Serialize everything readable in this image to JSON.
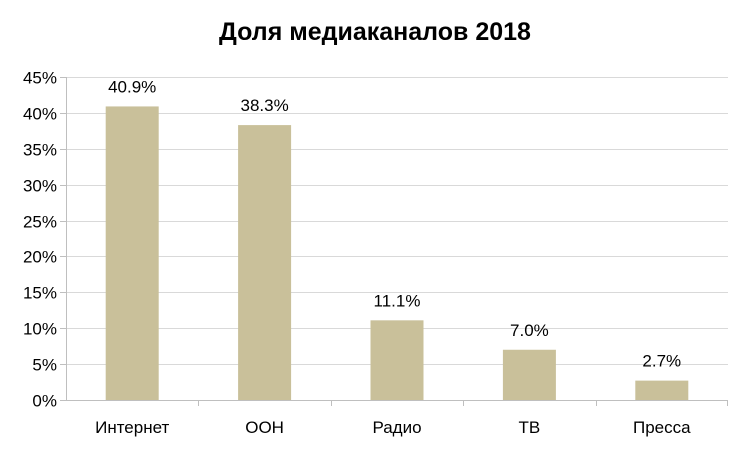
{
  "chart_data": {
    "type": "bar",
    "title": "Доля медиаканалов 2018",
    "categories": [
      "Интернет",
      "OOH",
      "Радио",
      "ТВ",
      "Пресса"
    ],
    "values": [
      40.9,
      38.3,
      11.1,
      7.0,
      2.7
    ],
    "value_labels": [
      "40.9%",
      "38.3%",
      "11.1%",
      "7.0%",
      "2.7%"
    ],
    "y_ticks": [
      0,
      5,
      10,
      15,
      20,
      25,
      30,
      35,
      40,
      45
    ],
    "y_tick_labels": [
      "0%",
      "5%",
      "10%",
      "15%",
      "20%",
      "25%",
      "30%",
      "35%",
      "40%",
      "45%"
    ],
    "ylim": [
      0,
      45
    ],
    "xlabel": "",
    "ylabel": "",
    "grid": true,
    "legend": "none",
    "bar_color": "#c9c09a",
    "grid_color": "#d9d9d9",
    "axis_color": "#bfbfbf"
  }
}
